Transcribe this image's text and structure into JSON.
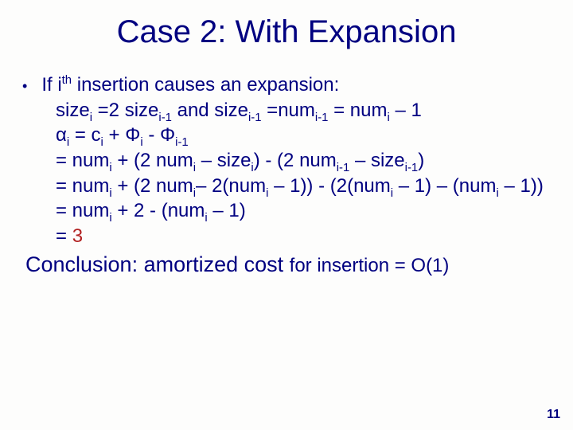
{
  "title": "Case 2:  With Expansion",
  "bullet": "•",
  "bullet_text_pre": "If i",
  "th": "th",
  "bullet_text_post": " insertion causes an expansion:",
  "line1": {
    "a": "size",
    "sub1": "i",
    "b": " =2 size",
    "sub2": "i-1",
    "c": " and size",
    "sub3": "i-1",
    "d": " =num",
    "sub4": "i-1",
    "e": " = num",
    "sub5": "i",
    "f": " – 1"
  },
  "line2": {
    "alpha": "α",
    "sub1": "i",
    "a": " =  c",
    "sub2": "i",
    "b": "  +  Φ",
    "sub3": "i",
    "c": "  -  Φ",
    "sub4": "i-1"
  },
  "line3": {
    "a": "=   num",
    "sub1": "i",
    "b": " + (2 num",
    "sub2": "i",
    "c": " – size",
    "sub3": "i",
    "d": ") - (2 num",
    "sub4": "i-1",
    "e": " – size",
    "sub5": "i-1",
    "f": ")"
  },
  "line4": {
    "a": "=   num",
    "sub1": "i",
    "b": " + (2 num",
    "sub2": "i",
    "c": "– 2(num",
    "sub3": "i",
    "d": " – 1)) - (2(num",
    "sub4": "i",
    "e": " – 1) – (num",
    "sub5": "i",
    "f": " – 1))"
  },
  "line5": {
    "a": "= num",
    "sub1": "i",
    "b": " + 2 - (num",
    "sub2": "i",
    "c": " – 1)"
  },
  "line6": {
    "a": "= ",
    "result": "3"
  },
  "conclusion": {
    "a": "Conclusion:  amortized cost ",
    "b": "for insertion = O(1)"
  },
  "page_num": "11",
  "colors": {
    "text": "#000080",
    "accent": "#b22222",
    "bg": "#fdfdfc"
  }
}
